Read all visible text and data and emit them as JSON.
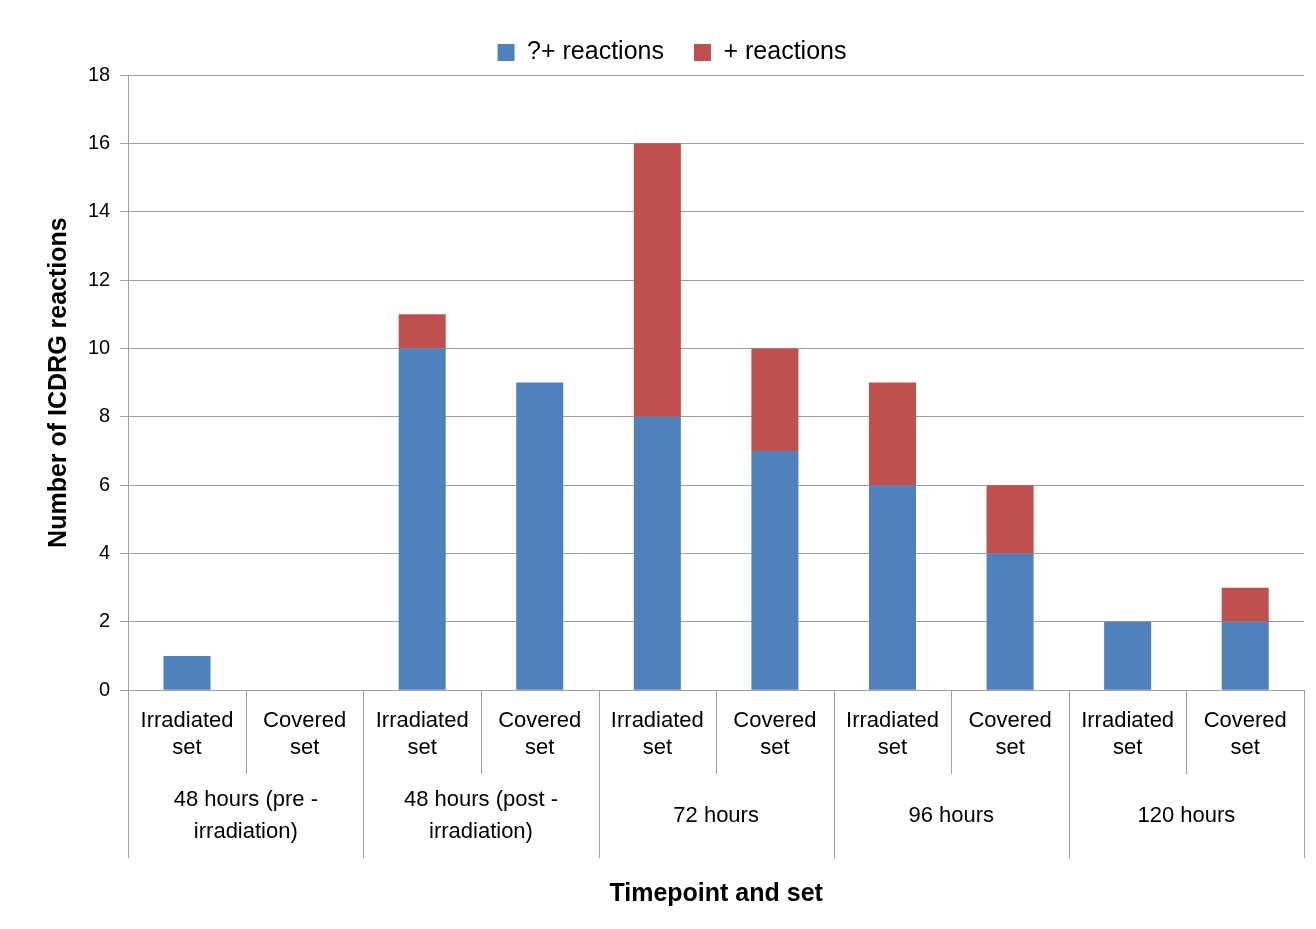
{
  "chart_data": {
    "type": "bar",
    "stacked": true,
    "xlabel": "Timepoint and set",
    "ylabel": "Number of ICDRG reactions",
    "categories": [
      "Irradiated set",
      "Covered set",
      "Irradiated set",
      "Covered set",
      "Irradiated set",
      "Covered set",
      "Irradiated set",
      "Covered set",
      "Irradiated set",
      "Covered set"
    ],
    "series": [
      {
        "name": "?+ reactions",
        "color": "#4f81bd",
        "values": [
          1,
          0,
          10,
          9,
          8,
          7,
          6,
          4,
          2,
          2
        ]
      },
      {
        "name": "+ reactions",
        "color": "#c0504d",
        "values": [
          0,
          0,
          1,
          0,
          8,
          3,
          3,
          2,
          0,
          1
        ]
      }
    ],
    "annotations": [
      "48 hours (pre - irradiation)",
      "48 hours (post - irradiation)",
      "72 hours",
      "96 hours",
      "120 hours"
    ],
    "ylim": [
      0,
      18
    ],
    "yticks": [
      0,
      2,
      4,
      6,
      8,
      10,
      12,
      14,
      16,
      18
    ],
    "grid": "y",
    "legend": "top"
  }
}
